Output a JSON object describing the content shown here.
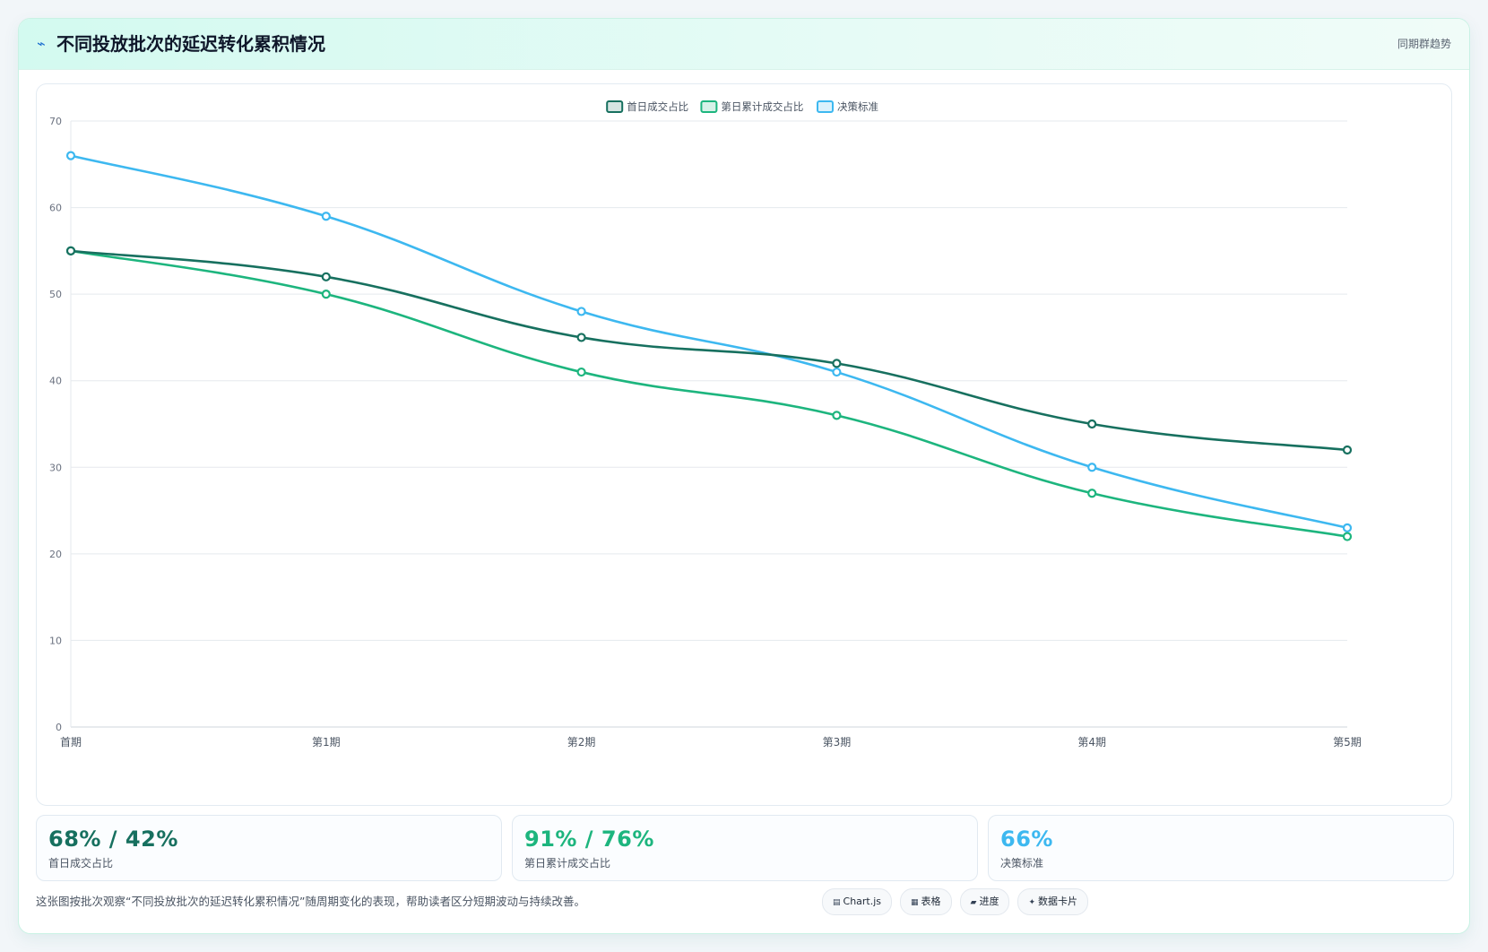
{
  "header": {
    "icon": "line-chart-icon",
    "title": "不同投放批次的延迟转化累积情况",
    "tag": "同期群趋势"
  },
  "colors": {
    "series1": "#17705f",
    "series2": "#1db57e",
    "series3": "#3db8f0"
  },
  "chart_data": {
    "type": "line",
    "categories": [
      "首期",
      "第1期",
      "第2期",
      "第3期",
      "第4期",
      "第5期"
    ],
    "series": [
      {
        "name": "首日成交占比",
        "values": [
          55,
          52,
          45,
          42,
          35,
          32
        ]
      },
      {
        "name": "第日累计成交占比",
        "values": [
          55,
          50,
          41,
          36,
          27,
          22
        ]
      },
      {
        "name": "决策标准",
        "values": [
          66,
          59,
          48,
          41,
          30,
          23
        ]
      }
    ],
    "ylim": [
      0,
      70
    ],
    "yticks": [
      0,
      10,
      20,
      30,
      40,
      50,
      60,
      70
    ],
    "grid": true,
    "legend": "top-center"
  },
  "stats": [
    {
      "value": "68% / 42%",
      "label": "首日成交占比"
    },
    {
      "value": "91% / 76%",
      "label": "第日累计成交占比"
    },
    {
      "value": "66%",
      "label": "决策标准"
    }
  ],
  "footer": {
    "caption": "这张图按批次观察“不同投放批次的延迟转化累积情况”随周期变化的表现，帮助读者区分短期波动与持续改善。",
    "chips": [
      {
        "icon": "chart-icon",
        "label": "Chart.js"
      },
      {
        "icon": "table-icon",
        "label": "表格"
      },
      {
        "icon": "progress-icon",
        "label": "进度"
      },
      {
        "icon": "sparkle-icon",
        "label": "数据卡片"
      }
    ]
  }
}
